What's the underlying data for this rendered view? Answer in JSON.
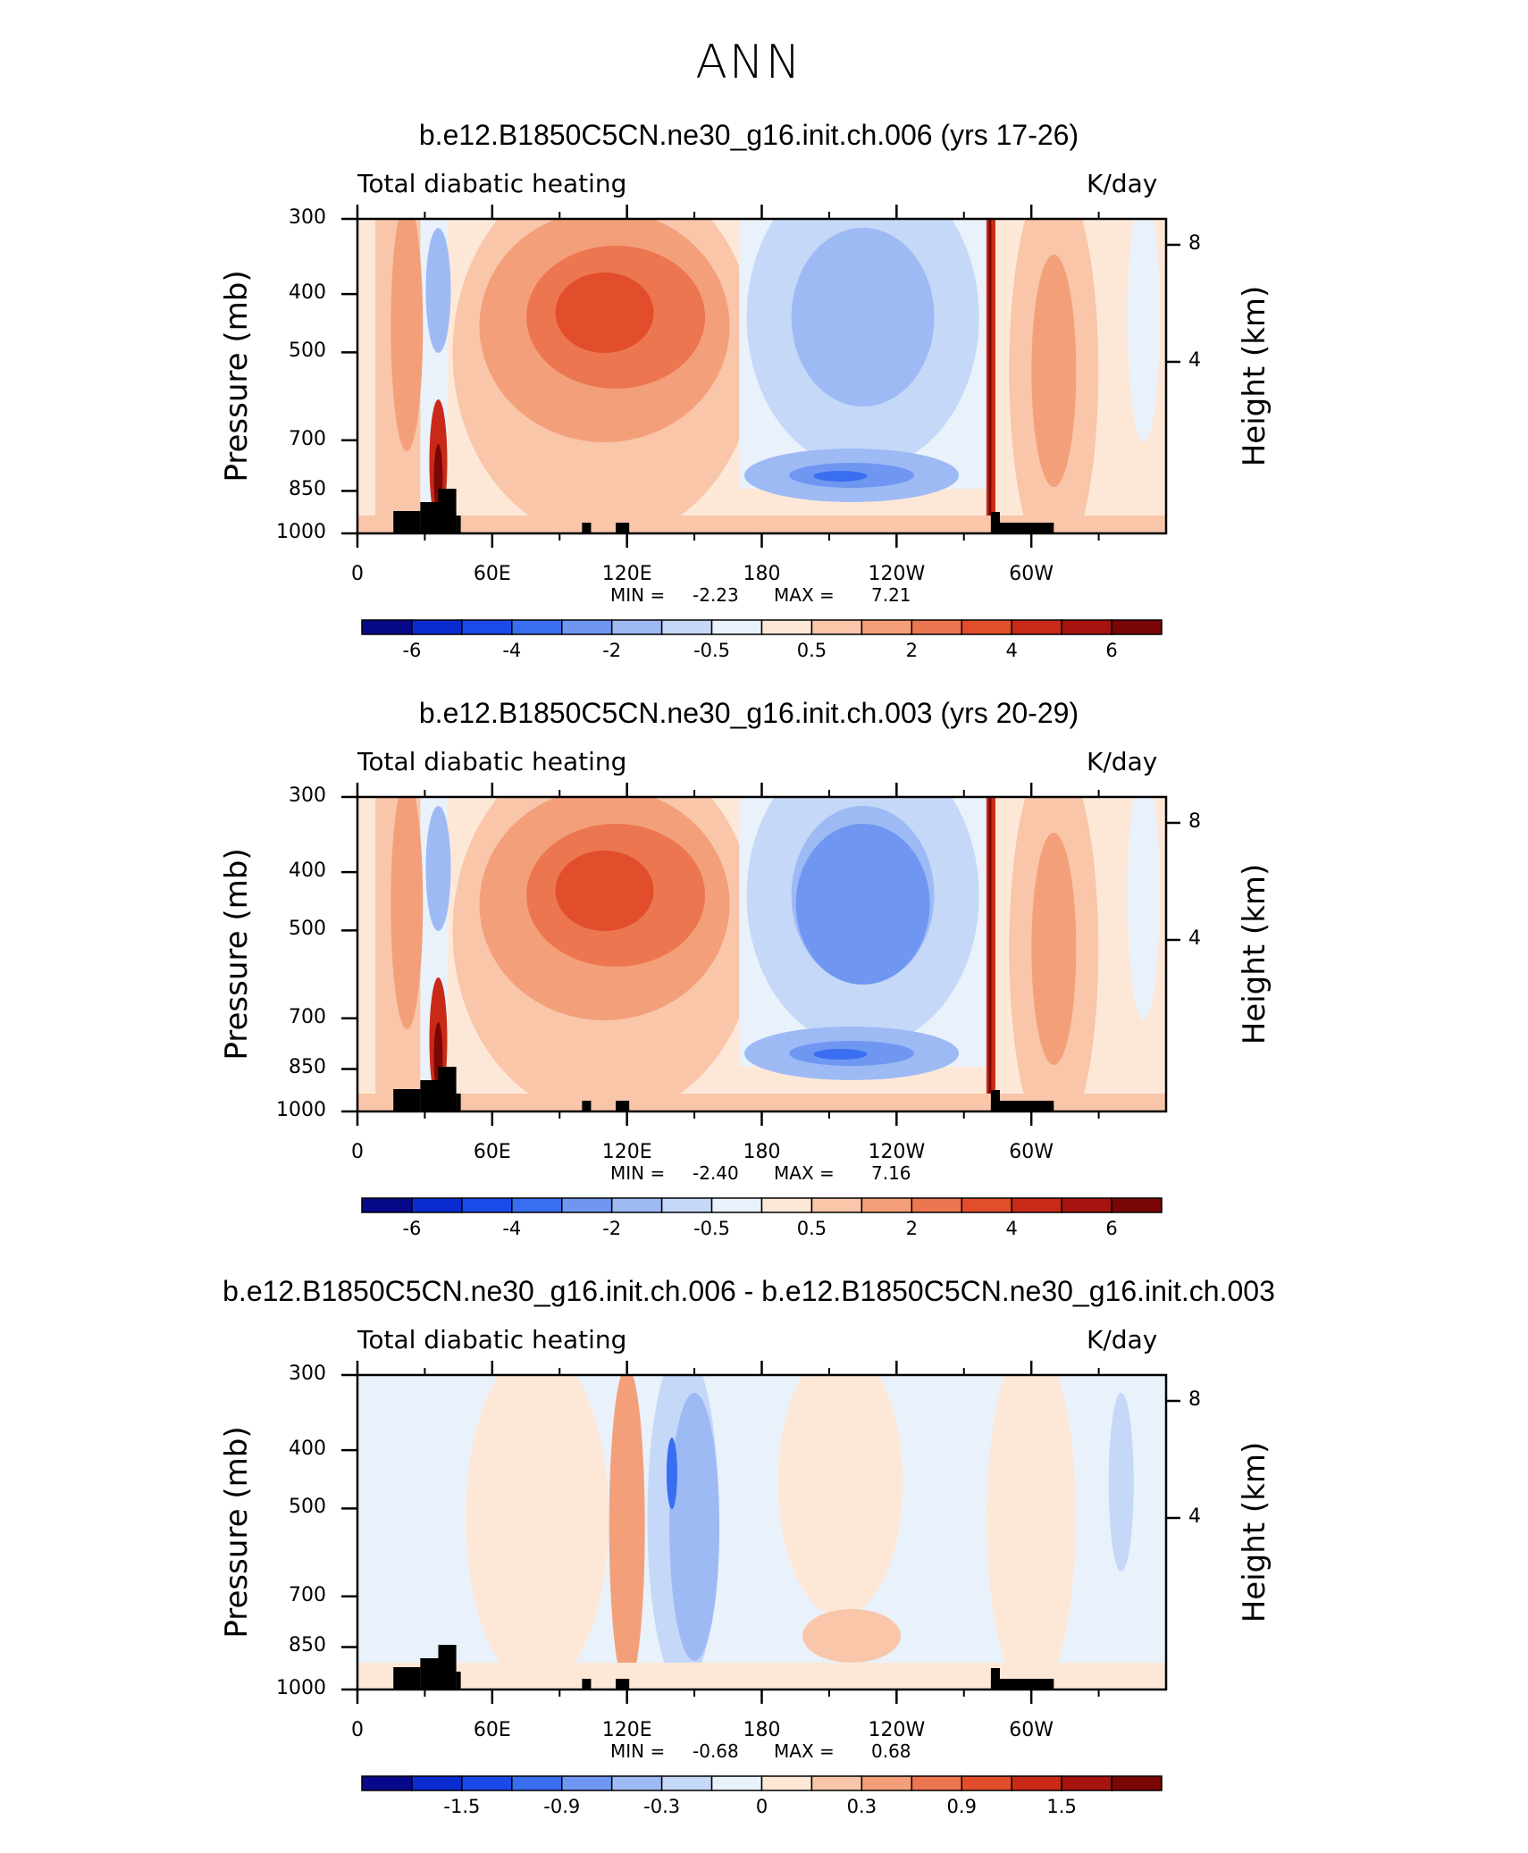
{
  "main_title": "ANN",
  "colors": {
    "scale": [
      "#08088a",
      "#0a2bd0",
      "#1a4ae8",
      "#3a6ef0",
      "#6f97f2",
      "#9ebaf5",
      "#c5d8f8",
      "#e9f1fb",
      "#fde8d8",
      "#f9c6aa",
      "#f3a07a",
      "#ec7650",
      "#e24e2c",
      "#c92a18",
      "#a61410",
      "#7a0606"
    ],
    "topography": "#000000"
  },
  "chart_data": [
    {
      "type": "heatmap",
      "title": "b.e12.B1850C5CN.ne30_g16.init.ch.006 (yrs 17-26)",
      "variable": "Total diabatic heating",
      "units": "K/day",
      "ylabel": "Pressure (mb)",
      "ylabel_right": "Height (km)",
      "y_ticks": [
        "300",
        "400",
        "500",
        "700",
        "850",
        "1000"
      ],
      "height_ticks": [
        "8",
        "4"
      ],
      "x_ticks": [
        "0",
        "60E",
        "120E",
        "180",
        "120W",
        "60W"
      ],
      "min_label": "MIN =",
      "min_value": "-2.23",
      "max_label": "MAX =",
      "max_value": "7.21",
      "colorbar_levels": [
        "-6",
        "-4",
        "-2",
        "-0.5",
        "0.5",
        "2",
        "4",
        "6"
      ]
    },
    {
      "type": "heatmap",
      "title": "b.e12.B1850C5CN.ne30_g16.init.ch.003 (yrs 20-29)",
      "variable": "Total diabatic heating",
      "units": "K/day",
      "ylabel": "Pressure (mb)",
      "ylabel_right": "Height (km)",
      "y_ticks": [
        "300",
        "400",
        "500",
        "700",
        "850",
        "1000"
      ],
      "height_ticks": [
        "8",
        "4"
      ],
      "x_ticks": [
        "0",
        "60E",
        "120E",
        "180",
        "120W",
        "60W"
      ],
      "min_label": "MIN =",
      "min_value": "-2.40",
      "max_label": "MAX =",
      "max_value": "7.16",
      "colorbar_levels": [
        "-6",
        "-4",
        "-2",
        "-0.5",
        "0.5",
        "2",
        "4",
        "6"
      ]
    },
    {
      "type": "heatmap",
      "title": "b.e12.B1850C5CN.ne30_g16.init.ch.006 - b.e12.B1850C5CN.ne30_g16.init.ch.003",
      "variable": "Total diabatic heating",
      "units": "K/day",
      "ylabel": "Pressure (mb)",
      "ylabel_right": "Height (km)",
      "y_ticks": [
        "300",
        "400",
        "500",
        "700",
        "850",
        "1000"
      ],
      "height_ticks": [
        "8",
        "4"
      ],
      "x_ticks": [
        "0",
        "60E",
        "120E",
        "180",
        "120W",
        "60W"
      ],
      "min_label": "MIN =",
      "min_value": "-0.68",
      "max_label": "MAX =",
      "max_value": "0.68",
      "colorbar_levels": [
        "-1.5",
        "-0.9",
        "-0.3",
        "0",
        "0.3",
        "0.9",
        "1.5"
      ]
    }
  ]
}
